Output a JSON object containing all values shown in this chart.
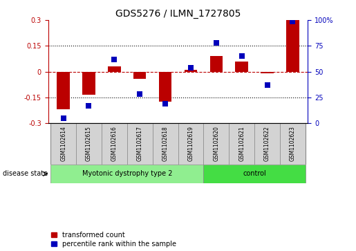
{
  "title": "GDS5276 / ILMN_1727805",
  "samples": [
    "GSM1102614",
    "GSM1102615",
    "GSM1102616",
    "GSM1102617",
    "GSM1102618",
    "GSM1102619",
    "GSM1102620",
    "GSM1102621",
    "GSM1102622",
    "GSM1102623"
  ],
  "transformed_count": [
    -0.22,
    -0.135,
    0.03,
    -0.04,
    -0.175,
    0.01,
    0.09,
    0.06,
    -0.01,
    0.3
  ],
  "percentile_rank": [
    5,
    17,
    62,
    28,
    19,
    54,
    78,
    65,
    37,
    99
  ],
  "ylim_left": [
    -0.3,
    0.3
  ],
  "ylim_right": [
    0,
    100
  ],
  "yticks_left": [
    -0.3,
    -0.15,
    0,
    0.15,
    0.3
  ],
  "yticks_right": [
    0,
    25,
    50,
    75,
    100
  ],
  "ytick_labels_left": [
    "-0.3",
    "-0.15",
    "0",
    "0.15",
    "0.3"
  ],
  "ytick_labels_right": [
    "0",
    "25",
    "50",
    "75",
    "100%"
  ],
  "red_color": "#bb0000",
  "blue_color": "#0000bb",
  "groups": [
    {
      "label": "Myotonic dystrophy type 2",
      "start": 0,
      "end": 6,
      "color": "#90ee90"
    },
    {
      "label": "control",
      "start": 6,
      "end": 10,
      "color": "#44dd44"
    }
  ],
  "disease_state_label": "disease state",
  "legend_red_label": "transformed count",
  "legend_blue_label": "percentile rank within the sample",
  "bar_width": 0.5,
  "dot_size": 40,
  "sample_box_color": "#d3d3d3",
  "hgrid_dotted_vals": [
    0.15,
    -0.15
  ],
  "hgrid_dashed_val": 0.0
}
